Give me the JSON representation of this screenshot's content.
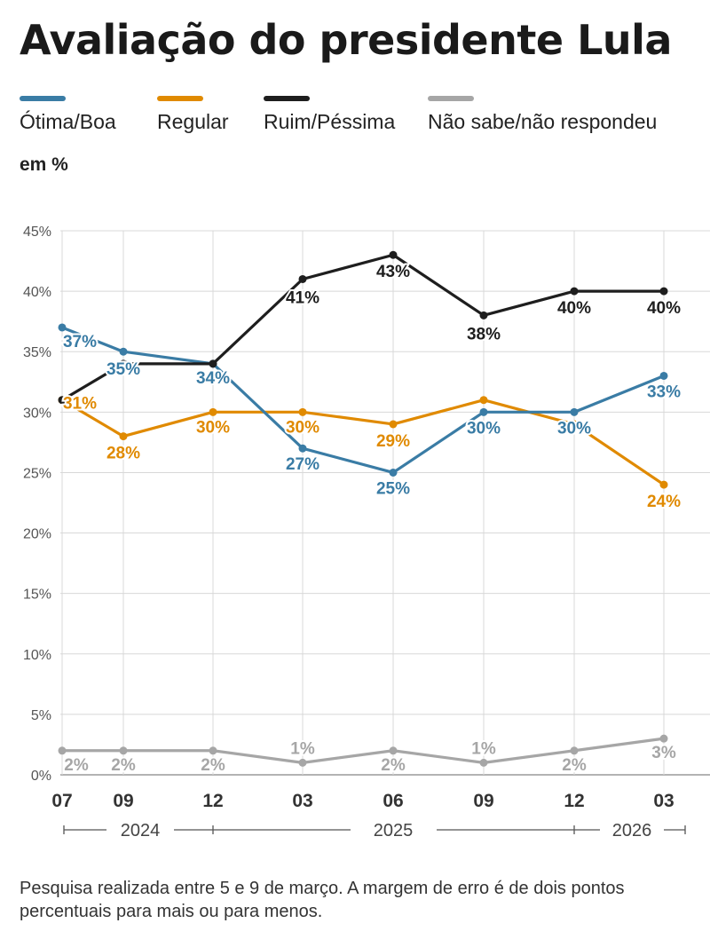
{
  "title": "Avaliação do presidente Lula",
  "unit_label": "em %",
  "footnote": "Pesquisa realizada entre 5 e 9 de março. A margem de erro é de dois pontos percentuais para mais ou para menos.",
  "chart_data": {
    "type": "line",
    "title": "Avaliação do presidente Lula",
    "ylabel": "em %",
    "ylim": [
      0,
      45
    ],
    "yticks": [
      "0%",
      "5%",
      "10%",
      "15%",
      "20%",
      "25%",
      "30%",
      "35%",
      "40%",
      "45%"
    ],
    "categories": [
      "07",
      "09",
      "12",
      "03",
      "06",
      "09",
      "12",
      "03"
    ],
    "years": [
      "2024",
      "2025",
      "2026"
    ],
    "grid": true,
    "series": [
      {
        "name": "Ótima/Boa",
        "color": "#3a7ca5",
        "values": [
          37,
          35,
          34,
          27,
          25,
          30,
          30,
          33
        ],
        "labels": [
          "37%",
          "35%",
          "34%",
          "27%",
          "25%",
          "30%",
          "30%",
          "33%"
        ]
      },
      {
        "name": "Regular",
        "color": "#e08a00",
        "values": [
          31,
          28,
          30,
          30,
          29,
          31,
          29,
          24
        ],
        "labels": [
          "31%",
          "28%",
          "30%",
          "30%",
          "29%",
          "",
          "",
          "24%"
        ]
      },
      {
        "name": "Ruim/Péssima",
        "color": "#1e1e1e",
        "values": [
          31,
          34,
          34,
          41,
          43,
          38,
          40,
          40
        ],
        "labels": [
          "",
          "",
          "",
          "41%",
          "43%",
          "38%",
          "40%",
          "40%"
        ]
      },
      {
        "name": "Não sabe/não respondeu",
        "color": "#a6a6a6",
        "values": [
          2,
          2,
          2,
          1,
          2,
          1,
          2,
          3
        ],
        "labels": [
          "2%",
          "2%",
          "2%",
          "1%",
          "2%",
          "1%",
          "2%",
          "3%"
        ]
      }
    ]
  }
}
